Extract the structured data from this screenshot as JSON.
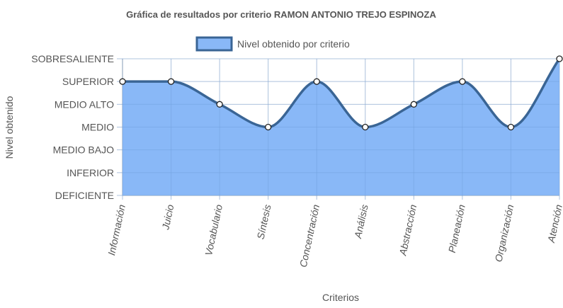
{
  "chart_data": {
    "type": "area",
    "title": "Gráfica de resultados por criterio RAMON ANTONIO TREJO ESPINOZA",
    "xlabel": "Criterios",
    "ylabel": "Nivel obtenido",
    "categories": [
      "Información",
      "Juicio",
      "Vocabulario",
      "Síntesis",
      "Concentración",
      "Análisis",
      "Abstracción",
      "Planeación",
      "Organización",
      "Atención"
    ],
    "y_levels": [
      "DEFICIENTE",
      "INFERIOR",
      "MEDIO BAJO",
      "MEDIO",
      "MEDIO ALTO",
      "SUPERIOR",
      "SOBRESALIENTE"
    ],
    "ylim": [
      0,
      6
    ],
    "grid": true,
    "legend": "top-center",
    "series": [
      {
        "name": "Nivel obtenido por criterio",
        "values": [
          5,
          5,
          4,
          3,
          5,
          3,
          4,
          5,
          3,
          6
        ],
        "fill_color": "#89b8f7",
        "line_color": "#3a6595"
      }
    ]
  }
}
